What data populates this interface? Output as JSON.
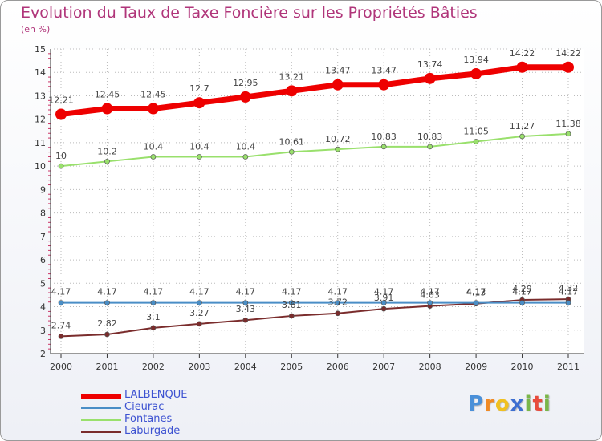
{
  "title": "Evolution du Taux de Taxe Foncière sur les Propriétés Bâties",
  "unit": "(en %)",
  "logo_text": "Proxiti",
  "colors": {
    "title": "#b0357a",
    "legend_text": "#3d52d1",
    "grid": "#bbbbbb",
    "axis": "#333333"
  },
  "chart_data": {
    "type": "line",
    "title": "Evolution du Taux de Taxe Foncière sur les Propriétés Bâties",
    "xlabel": "",
    "ylabel": "(en %)",
    "ylim": [
      2,
      15
    ],
    "yticks": [
      "2",
      "3",
      "4",
      "5",
      "6",
      "7",
      "8",
      "9",
      "10",
      "11",
      "12",
      "13",
      "14",
      "15"
    ],
    "categories": [
      "2000",
      "2001",
      "2002",
      "2003",
      "2004",
      "2005",
      "2006",
      "2007",
      "2008",
      "2009",
      "2010",
      "2011"
    ],
    "grid": true,
    "legend_position": "bottom-left",
    "series": [
      {
        "name": "LALBENQUE",
        "color": "#ee0000",
        "values": [
          12.21,
          12.45,
          12.45,
          12.7,
          12.95,
          13.21,
          13.47,
          13.47,
          13.74,
          13.94,
          14.22,
          14.22
        ],
        "labels": [
          "12.21",
          "12.45",
          "12.45",
          "12.7",
          "12.95",
          "13.21",
          "13.47",
          "13.47",
          "13.74",
          "13.94",
          "14.22",
          "14.22"
        ]
      },
      {
        "name": "Cieurac",
        "color": "#4a8ec6",
        "values": [
          4.17,
          4.17,
          4.17,
          4.17,
          4.17,
          4.17,
          4.17,
          4.17,
          4.17,
          4.17,
          4.17,
          4.17
        ],
        "labels": [
          "4.17",
          "4.17",
          "4.17",
          "4.17",
          "4.17",
          "4.17",
          "4.17",
          "4.17",
          "4.17",
          "4.17",
          "4.17",
          "4.17"
        ]
      },
      {
        "name": "Fontanes",
        "color": "#99e06c",
        "values": [
          10,
          10.2,
          10.4,
          10.4,
          10.4,
          10.61,
          10.72,
          10.83,
          10.83,
          11.05,
          11.27,
          11.38
        ],
        "labels": [
          "10",
          "10.2",
          "10.4",
          "10.4",
          "10.4",
          "10.61",
          "10.72",
          "10.83",
          "10.83",
          "11.05",
          "11.27",
          "11.38"
        ]
      },
      {
        "name": "Laburgade",
        "color": "#7a2c2c",
        "values": [
          2.74,
          2.82,
          3.1,
          3.27,
          3.43,
          3.61,
          3.72,
          3.91,
          4.03,
          4.13,
          4.29,
          4.32
        ],
        "labels": [
          "2.74",
          "2.82",
          "3.1",
          "3.27",
          "3.43",
          "3.61",
          "3.72",
          "3.91",
          "4.03",
          "4.13",
          "4.29",
          "4.32"
        ]
      }
    ]
  }
}
